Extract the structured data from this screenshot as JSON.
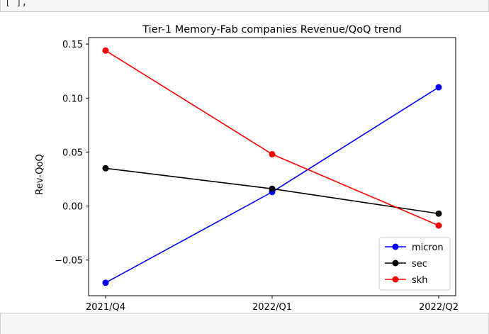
{
  "notebook": {
    "prev_cell_text": "[      ],"
  },
  "chart_data": {
    "type": "line",
    "title": "Tier-1 Memory-Fab companies Revenue/QoQ trend",
    "xlabel": "",
    "ylabel": "Rev-QoQ",
    "categories": [
      "2021/Q4",
      "2022/Q1",
      "2022/Q2"
    ],
    "ylim": [
      -0.083,
      0.156
    ],
    "yticks": [
      -0.05,
      0.0,
      0.05,
      0.1,
      0.15
    ],
    "ytick_labels": [
      "−0.05",
      "0.00",
      "0.05",
      "0.10",
      "0.15"
    ],
    "grid": false,
    "legend_position": "lower-right",
    "series": [
      {
        "name": "micron",
        "color": "#0000ff",
        "values": [
          -0.071,
          0.013,
          0.11
        ]
      },
      {
        "name": "sec",
        "color": "#000000",
        "values": [
          0.035,
          0.016,
          -0.007
        ]
      },
      {
        "name": "skh",
        "color": "#ff0000",
        "values": [
          0.144,
          0.048,
          -0.018
        ]
      }
    ]
  }
}
